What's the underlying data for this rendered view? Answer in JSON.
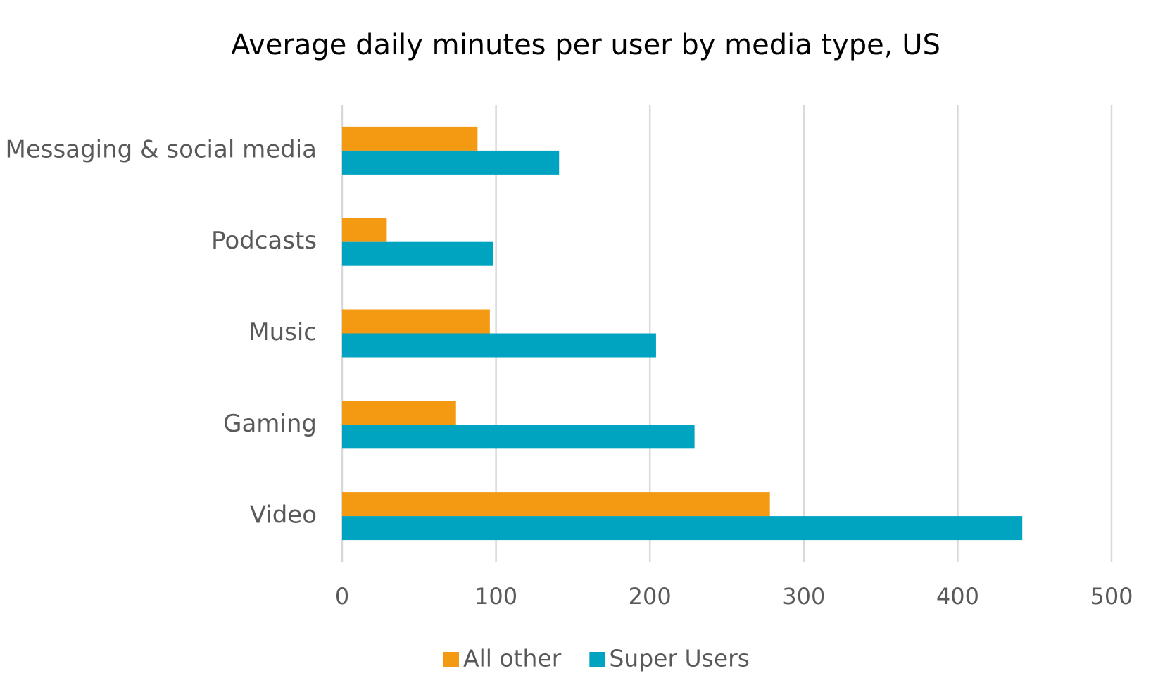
{
  "chart_data": {
    "type": "bar",
    "orientation": "horizontal",
    "title": "Average daily minutes per user by media type, US",
    "categories": [
      "Messaging & social media",
      "Podcasts",
      "Music",
      "Gaming",
      "Video"
    ],
    "series": [
      {
        "name": "All other",
        "color": "#f39a12",
        "values": [
          88,
          29,
          96,
          74,
          278
        ]
      },
      {
        "name": "Super Users",
        "color": "#00a3c0",
        "values": [
          141,
          98,
          204,
          229,
          442
        ]
      }
    ],
    "xlim": [
      0,
      500
    ],
    "xticks": [
      0,
      100,
      200,
      300,
      400,
      500
    ],
    "grid": true,
    "legend": "bottom"
  }
}
